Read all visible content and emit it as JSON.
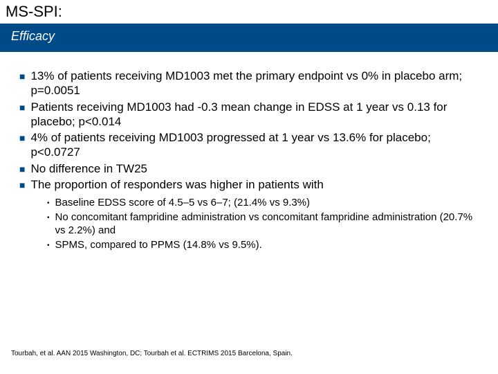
{
  "header": {
    "title": "MS-SPI:",
    "subtitle": "Efficacy",
    "bg_color": "#004b87",
    "title_bg": "#ffffff"
  },
  "bullets": [
    "13% of patients receiving MD1003 met the primary endpoint vs 0% in placebo arm; p=0.0051",
    "Patients receiving MD1003 had -0.3 mean change in EDSS at 1 year vs 0.13 for placebo; p<0.014",
    "4% of patients receiving MD1003 progressed at 1 year vs 13.6% for placebo; p<0.0727",
    "No difference in TW25",
    "The proportion of responders was higher in patients with"
  ],
  "sub_bullets": [
    "Baseline EDSS score of 4.5–5 vs 6–7; (21.4% vs 9.3%)",
    "No concomitant fampridine administration vs concomitant fampridine administration (20.7% vs 2.2%) and",
    "SPMS, compared to PPMS (14.8% vs 9.5%)."
  ],
  "footer": "Tourbah, et al. AAN 2015 Washington, DC; Tourbah et al. ECTRIMS 2015 Barcelona, Spain."
}
